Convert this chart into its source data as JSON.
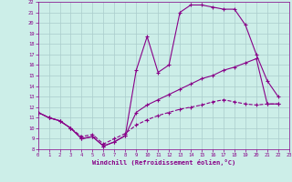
{
  "xlabel": "Windchill (Refroidissement éolien,°C)",
  "bg_color": "#cceee8",
  "grid_color": "#aacccc",
  "line_color": "#880088",
  "xmin": 0,
  "xmax": 23,
  "ymin": 8,
  "ymax": 22,
  "yticks": [
    8,
    9,
    10,
    11,
    12,
    13,
    14,
    15,
    16,
    17,
    18,
    19,
    20,
    21,
    22
  ],
  "xticks": [
    0,
    1,
    2,
    3,
    4,
    5,
    6,
    7,
    8,
    9,
    10,
    11,
    12,
    13,
    14,
    15,
    16,
    17,
    18,
    19,
    20,
    21,
    22,
    23
  ],
  "line1_x": [
    0,
    1,
    2,
    3,
    4,
    5,
    6,
    7,
    8,
    9,
    10,
    11,
    12,
    13,
    14,
    15,
    16,
    17,
    18,
    19,
    20,
    21,
    22
  ],
  "line1_y": [
    11.5,
    11.0,
    10.7,
    10.0,
    9.0,
    9.2,
    8.3,
    8.7,
    9.3,
    15.5,
    18.7,
    15.3,
    16.0,
    21.0,
    21.7,
    21.7,
    21.5,
    21.3,
    21.3,
    19.8,
    17.0,
    14.5,
    13.0
  ],
  "line2_x": [
    0,
    1,
    2,
    3,
    4,
    5,
    6,
    7,
    8,
    9,
    10,
    11,
    12,
    13,
    14,
    15,
    16,
    17,
    18,
    19,
    20,
    21,
    22
  ],
  "line2_y": [
    11.5,
    11.0,
    10.7,
    10.0,
    9.0,
    9.2,
    8.3,
    8.7,
    9.3,
    11.5,
    12.2,
    12.7,
    13.2,
    13.7,
    14.2,
    14.7,
    15.0,
    15.5,
    15.8,
    16.2,
    16.6,
    12.3,
    12.3
  ],
  "line3_x": [
    0,
    1,
    2,
    3,
    4,
    5,
    6,
    7,
    8,
    9,
    10,
    11,
    12,
    13,
    14,
    15,
    16,
    17,
    18,
    19,
    20,
    21,
    22
  ],
  "line3_y": [
    11.5,
    11.0,
    10.7,
    10.0,
    9.2,
    9.4,
    8.5,
    9.0,
    9.5,
    10.3,
    10.8,
    11.2,
    11.5,
    11.8,
    12.0,
    12.2,
    12.5,
    12.7,
    12.5,
    12.3,
    12.2,
    12.3,
    12.3
  ]
}
